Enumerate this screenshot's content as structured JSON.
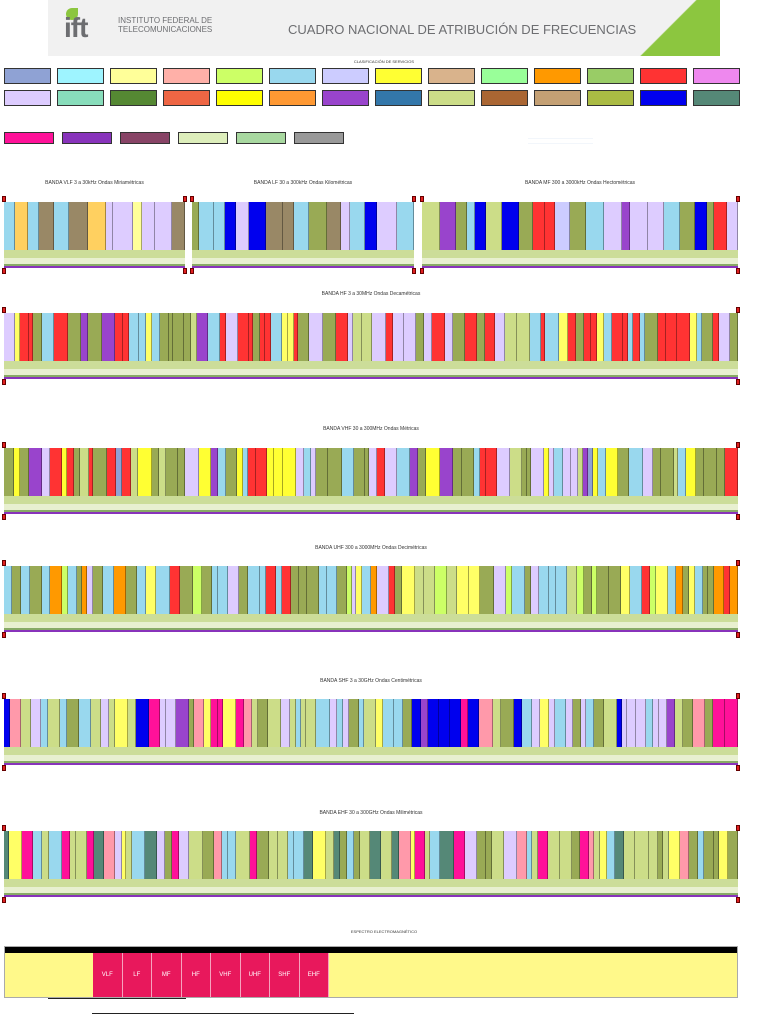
{
  "header": {
    "logo_text": "ift",
    "institute_line1": "INSTITUTO FEDERAL DE",
    "institute_line2": "TELECOMUNICACIONES",
    "title": "CUADRO NACIONAL DE ATRIBUCIÓN DE FRECUENCIAS",
    "accent_color": "#8cc63f"
  },
  "legend": {
    "title": "CLASIFICACIÓN DE SERVICIOS",
    "row1": [
      "#8fa2d4",
      "#9ef4ff",
      "#ffff99",
      "#ffb0a8",
      "#ccff66",
      "#99d8ee",
      "#ccccff",
      "#ffff33",
      "#d9b38c",
      "#99ff99",
      "#ff9900",
      "#99cc66",
      "#ff3333",
      "#ee88ee"
    ],
    "row2": [
      "#ddccff",
      "#88ddbb",
      "#558833",
      "#ee6644",
      "#ffff00",
      "#ff9933",
      "#9944cc",
      "#3377aa",
      "#ccdd88",
      "#aa6633",
      "#c4a074",
      "#aabb44",
      "#0000ee",
      "#558877"
    ],
    "row3": [
      "#ff1199",
      "#8833bb",
      "#884466",
      "#ddeebb",
      "#a8d8a0",
      "#999999"
    ]
  },
  "bands": [
    {
      "title": "BANDA VLF 3 a 30kHz  Ondas Miriamétricas",
      "palette": [
        "#999999",
        "#ffff99",
        "#ffff99",
        "#998866",
        "#998866",
        "#99d8ee",
        "#ffd060",
        "#ffd060",
        "#ddccff",
        "#99d8ee"
      ]
    },
    {
      "title": "BANDA LF 30 a 300kHz  Ondas Kilométricas",
      "palette": [
        "#99d8ee",
        "#ddccff",
        "#0000ee",
        "#99d8ee",
        "#998866",
        "#99d8ee",
        "#ddccff",
        "#99d8ee",
        "#99aa55",
        "#ff3333",
        "#ff3333",
        "#0000ee"
      ]
    },
    {
      "title": "BANDA MF 300 a 3000kHz  Ondas Hectométricas",
      "palette": [
        "#99aa55",
        "#0000ee",
        "#ff3333",
        "#99aa55",
        "#ddccff",
        "#99aa55",
        "#ccdd88",
        "#9944cc",
        "#99d8ee",
        "#ddccff",
        "#99aa55",
        "#ccccff",
        "#99d8ee"
      ]
    },
    {
      "title": "BANDA HF 3 a 30MHz  Ondas Decamétricas",
      "palette": [
        "#ff3333",
        "#99d8ee",
        "#ff3333",
        "#99aa55",
        "#ddccff",
        "#9944cc",
        "#ffff66",
        "#ff3333",
        "#99d8ee",
        "#99aa55",
        "#ccdd88",
        "#ff3333",
        "#ddccff",
        "#99aa55"
      ]
    },
    {
      "title": "BANDA VHF 30 a 300MHz  Ondas Métricas",
      "palette": [
        "#99d8ee",
        "#99aa55",
        "#ccdd88",
        "#ddccff",
        "#99aa55",
        "#8fa2d4",
        "#ffff33",
        "#99aa55",
        "#9944cc",
        "#ff3333",
        "#99d8ee",
        "#ddccff",
        "#99aa55",
        "#ff3333"
      ]
    },
    {
      "title": "BANDA UHF 300 a 3000MHz  Ondas Decimétricas",
      "palette": [
        "#99aa55",
        "#99d8ee",
        "#ccff66",
        "#ff9900",
        "#ff3333",
        "#99aa55",
        "#ddccff",
        "#99d8ee",
        "#ff9900",
        "#99aa55",
        "#ffff66",
        "#99d8ee",
        "#ccdd88"
      ]
    },
    {
      "title": "BANDA SHF 3 a 30GHz  Ondas Centimétricas",
      "palette": [
        "#99aa55",
        "#ccdd88",
        "#ddccff",
        "#ffff66",
        "#ff99aa",
        "#99d8ee",
        "#9944cc",
        "#99aa55",
        "#ff1199",
        "#0000ee",
        "#ccdd88",
        "#99d8ee",
        "#ddccff"
      ]
    },
    {
      "title": "BANDA EHF 30 a 300GHz  Ondas Milimétricas",
      "palette": [
        "#ccdd88",
        "#ff99aa",
        "#99aa55",
        "#ffff66",
        "#99d8ee",
        "#ddccff",
        "#558877",
        "#ff1199",
        "#99aa55",
        "#ccdd88",
        "#ffff66",
        "#99d8ee"
      ]
    }
  ],
  "spectrum": {
    "title": "ESPECTRO ELECTROMAGNÉTICO",
    "bands": [
      "VLF",
      "LF",
      "MF",
      "HF",
      "VHF",
      "UHF",
      "SHF",
      "EHF"
    ],
    "red_color": "#e8185c",
    "yellow_color": "#fff98a"
  }
}
